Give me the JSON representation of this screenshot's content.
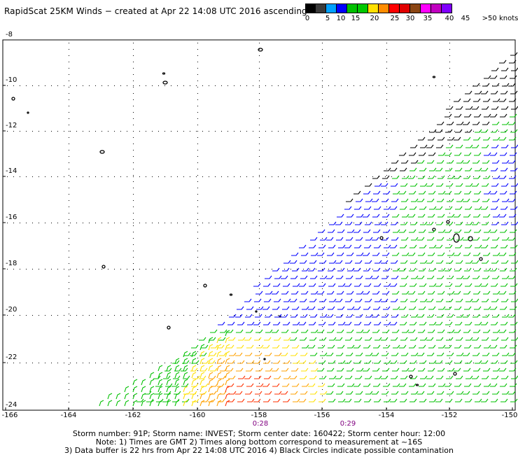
{
  "title": "RapidScat 25KM Winds − created at Apr 22 14:08 UTC 2016 ascending",
  "colorbar": {
    "colors": [
      "#000000",
      "#3a3a3a",
      "#00a0ff",
      "#0000ff",
      "#00c000",
      "#00c800",
      "#ffe000",
      "#ff8c00",
      "#ff0000",
      "#e00000",
      "#8b4513",
      "#ff00ff",
      "#c000c0",
      "#8000ff"
    ],
    "labels": [
      "0",
      "5",
      "10",
      "15",
      "20",
      "25",
      "30",
      "35",
      "40",
      "45",
      ">50 knots"
    ]
  },
  "map": {
    "y_labels": [
      "-8",
      "-10",
      "-12",
      "-14",
      "-16",
      "-18",
      "-20",
      "-22",
      "-24"
    ],
    "x_labels": [
      "-166",
      "-164",
      "-162",
      "-160",
      "-158",
      "-156",
      "-154",
      "-152",
      "-150"
    ],
    "pass_times": [
      "0:28",
      "0:29"
    ]
  },
  "notes": {
    "line1": "Storm number: 91P;  Storm name: INVEST;  Storm center date: 160422;  Storm center hour: 12:00",
    "line2": "Note: 1) Times are GMT  2) Times along bottom correspond to measurement at ~16S",
    "line3": "3) Data buffer is 22 hrs from Apr 22 14:08 UTC 2016  4) Black Circles indicate possible contamination"
  }
}
